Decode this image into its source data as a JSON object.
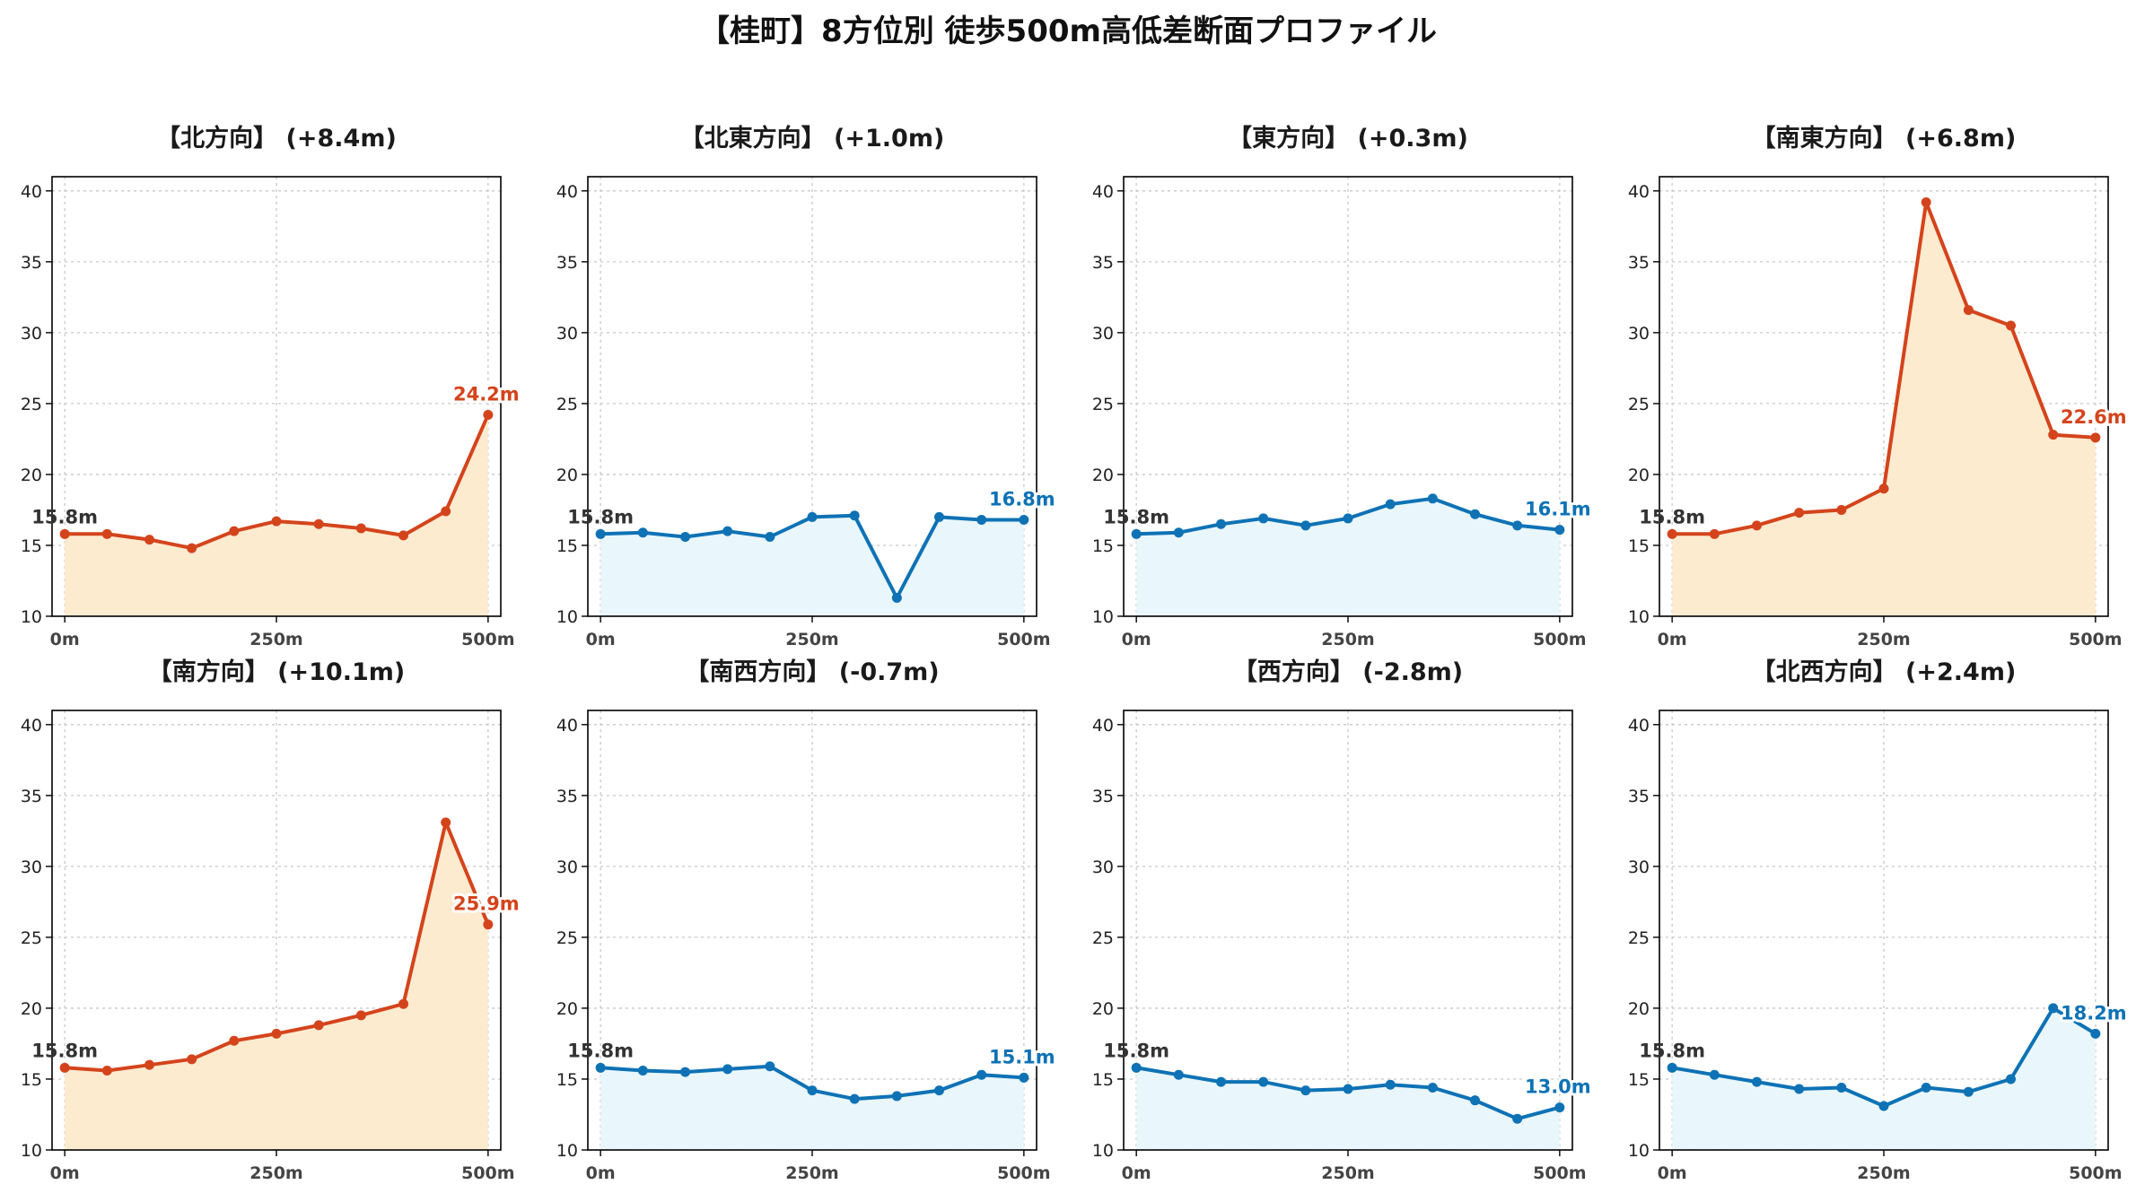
{
  "title": "【桂町】8方位別 徒歩500m高低差断面プロファイル",
  "colors": {
    "up_line": "#d4441c",
    "up_fill": "#fdebd0",
    "down_line": "#0e72b5",
    "down_fill": "#e9f6fb",
    "start_label": "#333333"
  },
  "chart_data": [
    {
      "type": "area",
      "title": "【北方向】 (+8.4m)",
      "trend": "up",
      "x": [
        0,
        50,
        100,
        150,
        200,
        250,
        300,
        350,
        400,
        450,
        500
      ],
      "values": [
        15.8,
        15.8,
        15.4,
        14.8,
        16.0,
        16.7,
        16.5,
        16.2,
        15.7,
        17.4,
        24.2
      ],
      "start_label": "15.8m",
      "end_label": "24.2m",
      "ylim": [
        10,
        41
      ],
      "xlim": [
        -15,
        515
      ],
      "yticks": [
        "10",
        "15",
        "20",
        "25",
        "30",
        "35",
        "40"
      ],
      "xticks": [
        "0m",
        "250m",
        "500m"
      ],
      "grid": true
    },
    {
      "type": "area",
      "title": "【北東方向】 (+1.0m)",
      "trend": "down",
      "x": [
        0,
        50,
        100,
        150,
        200,
        250,
        300,
        350,
        400,
        450,
        500
      ],
      "values": [
        15.8,
        15.9,
        15.6,
        16.0,
        15.6,
        17.0,
        17.1,
        11.3,
        17.0,
        16.8,
        16.8
      ],
      "start_label": "15.8m",
      "end_label": "16.8m",
      "ylim": [
        10,
        41
      ],
      "xlim": [
        -15,
        515
      ],
      "yticks": [
        "10",
        "15",
        "20",
        "25",
        "30",
        "35",
        "40"
      ],
      "xticks": [
        "0m",
        "250m",
        "500m"
      ],
      "grid": true
    },
    {
      "type": "area",
      "title": "【東方向】 (+0.3m)",
      "trend": "down",
      "x": [
        0,
        50,
        100,
        150,
        200,
        250,
        300,
        350,
        400,
        450,
        500
      ],
      "values": [
        15.8,
        15.9,
        16.5,
        16.9,
        16.4,
        16.9,
        17.9,
        18.3,
        17.2,
        16.4,
        16.1
      ],
      "start_label": "15.8m",
      "end_label": "16.1m",
      "ylim": [
        10,
        41
      ],
      "xlim": [
        -15,
        515
      ],
      "yticks": [
        "10",
        "15",
        "20",
        "25",
        "30",
        "35",
        "40"
      ],
      "xticks": [
        "0m",
        "250m",
        "500m"
      ],
      "grid": true
    },
    {
      "type": "area",
      "title": "【南東方向】 (+6.8m)",
      "trend": "up",
      "x": [
        0,
        50,
        100,
        150,
        200,
        250,
        300,
        350,
        400,
        450,
        500
      ],
      "values": [
        15.8,
        15.8,
        16.4,
        17.3,
        17.5,
        19.0,
        39.2,
        31.6,
        30.5,
        22.8,
        22.6
      ],
      "start_label": "15.8m",
      "end_label": "22.6m",
      "ylim": [
        10,
        41
      ],
      "xlim": [
        -15,
        515
      ],
      "yticks": [
        "10",
        "15",
        "20",
        "25",
        "30",
        "35",
        "40"
      ],
      "xticks": [
        "0m",
        "250m",
        "500m"
      ],
      "grid": true
    },
    {
      "type": "area",
      "title": "【南方向】 (+10.1m)",
      "trend": "up",
      "x": [
        0,
        50,
        100,
        150,
        200,
        250,
        300,
        350,
        400,
        450,
        500
      ],
      "values": [
        15.8,
        15.6,
        16.0,
        16.4,
        17.7,
        18.2,
        18.8,
        19.5,
        20.3,
        33.1,
        25.9
      ],
      "start_label": "15.8m",
      "end_label": "25.9m",
      "ylim": [
        10,
        41
      ],
      "xlim": [
        -15,
        515
      ],
      "yticks": [
        "10",
        "15",
        "20",
        "25",
        "30",
        "35",
        "40"
      ],
      "xticks": [
        "0m",
        "250m",
        "500m"
      ],
      "grid": true
    },
    {
      "type": "area",
      "title": "【南西方向】 (-0.7m)",
      "trend": "down",
      "x": [
        0,
        50,
        100,
        150,
        200,
        250,
        300,
        350,
        400,
        450,
        500
      ],
      "values": [
        15.8,
        15.6,
        15.5,
        15.7,
        15.9,
        14.2,
        13.6,
        13.8,
        14.2,
        15.3,
        15.1
      ],
      "start_label": "15.8m",
      "end_label": "15.1m",
      "ylim": [
        10,
        41
      ],
      "xlim": [
        -15,
        515
      ],
      "yticks": [
        "10",
        "15",
        "20",
        "25",
        "30",
        "35",
        "40"
      ],
      "xticks": [
        "0m",
        "250m",
        "500m"
      ],
      "grid": true
    },
    {
      "type": "area",
      "title": "【西方向】 (-2.8m)",
      "trend": "down",
      "x": [
        0,
        50,
        100,
        150,
        200,
        250,
        300,
        350,
        400,
        450,
        500
      ],
      "values": [
        15.8,
        15.3,
        14.8,
        14.8,
        14.2,
        14.3,
        14.6,
        14.4,
        13.5,
        12.2,
        13.0
      ],
      "start_label": "15.8m",
      "end_label": "13.0m",
      "ylim": [
        10,
        41
      ],
      "xlim": [
        -15,
        515
      ],
      "yticks": [
        "10",
        "15",
        "20",
        "25",
        "30",
        "35",
        "40"
      ],
      "xticks": [
        "0m",
        "250m",
        "500m"
      ],
      "grid": true
    },
    {
      "type": "area",
      "title": "【北西方向】 (+2.4m)",
      "trend": "down",
      "x": [
        0,
        50,
        100,
        150,
        200,
        250,
        300,
        350,
        400,
        450,
        500
      ],
      "values": [
        15.8,
        15.3,
        14.8,
        14.3,
        14.4,
        13.1,
        14.4,
        14.1,
        15.0,
        20.0,
        18.2
      ],
      "start_label": "15.8m",
      "end_label": "18.2m",
      "ylim": [
        10,
        41
      ],
      "xlim": [
        -15,
        515
      ],
      "yticks": [
        "10",
        "15",
        "20",
        "25",
        "30",
        "35",
        "40"
      ],
      "xticks": [
        "0m",
        "250m",
        "500m"
      ],
      "grid": true
    }
  ]
}
